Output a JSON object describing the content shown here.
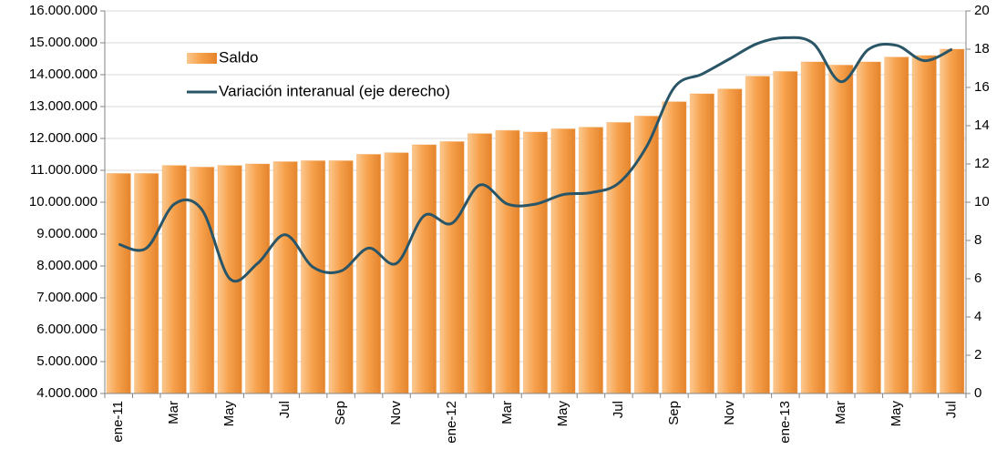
{
  "chart_data": {
    "type": "bar_line",
    "categories": [
      "ene-11",
      null,
      "Mar",
      null,
      "May",
      null,
      "Jul",
      null,
      "Sep",
      null,
      "Nov",
      null,
      "ene-12",
      null,
      "Mar",
      null,
      "May",
      null,
      "Jul",
      null,
      "Sep",
      null,
      "Nov",
      null,
      "ene-13",
      null,
      "Mar",
      null,
      "May",
      null,
      "Jul"
    ],
    "series": [
      {
        "name": "Saldo",
        "type": "bar",
        "color": "#f5a04a",
        "values": [
          10900000,
          10900000,
          11150000,
          11100000,
          11150000,
          11200000,
          11270000,
          11300000,
          11300000,
          11500000,
          11550000,
          11800000,
          11900000,
          12150000,
          12250000,
          12200000,
          12300000,
          12350000,
          12500000,
          12700000,
          13150000,
          13400000,
          13550000,
          13950000,
          14100000,
          14400000,
          14300000,
          14400000,
          14550000,
          14600000,
          14800000
        ]
      },
      {
        "name": "Variación interanual (eje derecho)",
        "type": "line",
        "axis": "y2",
        "color": "#2a5566",
        "values": [
          7.8,
          7.6,
          9.9,
          9.6,
          6.0,
          6.8,
          8.3,
          6.6,
          6.4,
          7.6,
          6.8,
          9.3,
          8.9,
          10.9,
          9.9,
          9.9,
          10.4,
          10.5,
          11.0,
          12.9,
          16.0,
          16.7,
          17.5,
          18.3,
          18.6,
          18.3,
          16.3,
          18.0,
          18.2,
          17.4,
          18.0
        ]
      }
    ],
    "ylim": [
      4000000,
      16000000
    ],
    "yticks": [
      {
        "value": 4000000,
        "label": "4.000.000"
      },
      {
        "value": 5000000,
        "label": "5.000.000"
      },
      {
        "value": 6000000,
        "label": "6.000.000"
      },
      {
        "value": 7000000,
        "label": "7.000.000"
      },
      {
        "value": 8000000,
        "label": "8.000.000"
      },
      {
        "value": 9000000,
        "label": "9.000.000"
      },
      {
        "value": 10000000,
        "label": "10.000.000"
      },
      {
        "value": 11000000,
        "label": "11.000.000"
      },
      {
        "value": 12000000,
        "label": "12.000.000"
      },
      {
        "value": 13000000,
        "label": "13.000.000"
      },
      {
        "value": 14000000,
        "label": "14.000.000"
      },
      {
        "value": 15000000,
        "label": "15.000.000"
      },
      {
        "value": 16000000,
        "label": "16.000.000"
      }
    ],
    "y2lim": [
      0,
      20
    ],
    "y2ticks": [
      0,
      2,
      4,
      6,
      8,
      10,
      12,
      14,
      16,
      18,
      20
    ],
    "grid": true,
    "legend": "upper left"
  }
}
